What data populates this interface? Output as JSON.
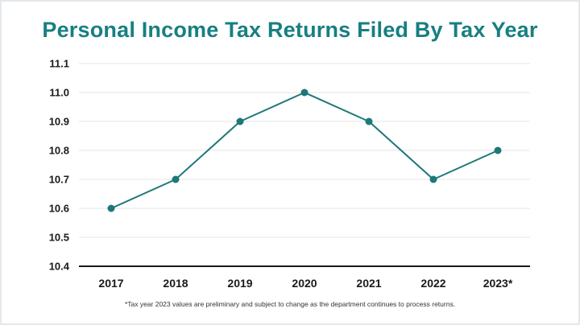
{
  "colors": {
    "accent": "#177f82",
    "line": "#1e7878",
    "grid": "#e4e4e4",
    "axis": "#1a1a1a"
  },
  "chart_data": {
    "type": "line",
    "title": "Personal Income Tax Returns Filed By Tax Year",
    "xlabel": "",
    "ylabel": "",
    "categories": [
      "2017",
      "2018",
      "2019",
      "2020",
      "2021",
      "2022",
      "2023*"
    ],
    "series": [
      {
        "values": [
          10.6,
          10.7,
          10.9,
          11.0,
          10.9,
          10.7,
          10.8
        ]
      }
    ],
    "ylim": [
      10.4,
      11.1
    ],
    "yticks": [
      "10.4",
      "10.5",
      "10.6",
      "10.7",
      "10.8",
      "10.9",
      "11.0",
      "11.1"
    ],
    "grid": true,
    "legend": "none"
  },
  "footnote": "*Tax year 2023 values are preliminary and subject to change as the department continues to process returns."
}
